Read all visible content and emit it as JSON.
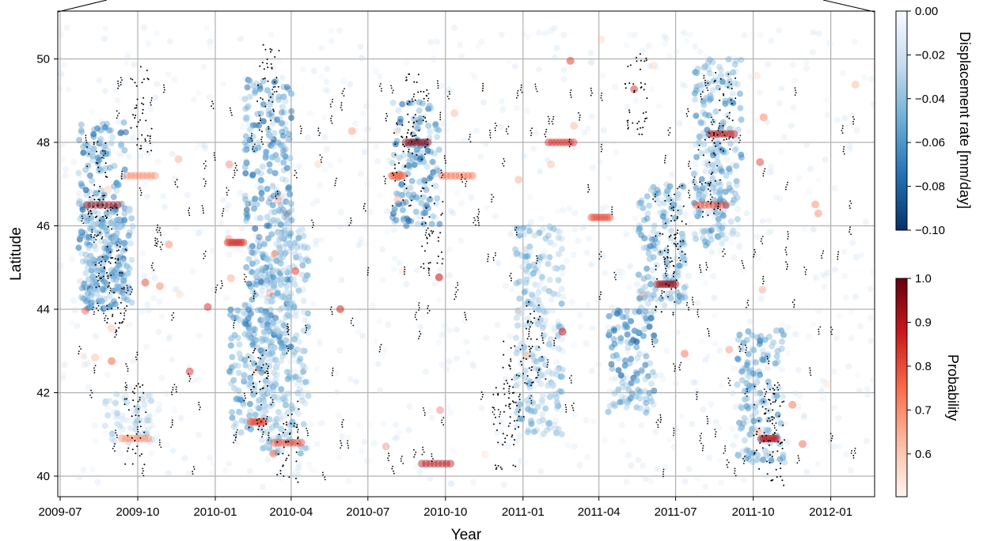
{
  "chart_data": {
    "type": "scatter",
    "xlabel": "Year",
    "ylabel": "Latitude",
    "x_ticks": [
      "2009-07",
      "2009-10",
      "2010-01",
      "2010-04",
      "2010-07",
      "2010-10",
      "2011-01",
      "2011-04",
      "2011-07",
      "2011-10",
      "2012-01"
    ],
    "y_ticks": [
      40,
      42,
      44,
      46,
      48,
      50
    ],
    "xlim": [
      "2009-07-01",
      "2012-03-01"
    ],
    "ylim": [
      39.55,
      51.15
    ],
    "grid": true,
    "colorbar_displacement": {
      "label": "Displacement rate [mm/day]",
      "range": [
        -0.1,
        0.0
      ],
      "ticks": [
        "0.00",
        "−0.02",
        "−0.04",
        "−0.06",
        "−0.08",
        "−0.10"
      ],
      "cmap_colors": [
        "#f7fbff",
        "#c6dbef",
        "#6baed6",
        "#2171b5",
        "#08306b"
      ]
    },
    "colorbar_probability": {
      "label": "Probability",
      "range": [
        0.5,
        1.0
      ],
      "ticks": [
        "1.0",
        "0.9",
        "0.8",
        "0.7",
        "0.6"
      ],
      "cmap_colors": [
        "#fff5f0",
        "#fcbba1",
        "#fb6a4a",
        "#cb181d",
        "#67000d"
      ]
    },
    "series": [
      {
        "role": "displacement-rate-clusters",
        "x": [
          "2009-08-20",
          "2009-08-28",
          "2009-09-20",
          "2010-02-15",
          "2010-03-05",
          "2010-03-25",
          "2010-08-27",
          "2011-01-20",
          "2011-05-10",
          "2011-06-15",
          "2011-08-20",
          "2011-10-10"
        ],
        "y_min": [
          44.0,
          44.0,
          40.8,
          41.0,
          43.0,
          40.5,
          46.0,
          41.0,
          41.5,
          44.0,
          45.5,
          40.3
        ],
        "y_max": [
          48.5,
          46.5,
          42.0,
          44.0,
          49.5,
          46.0,
          49.0,
          46.0,
          44.0,
          47.0,
          50.0,
          43.5
        ],
        "rate": [
          -0.06,
          -0.05,
          -0.03,
          -0.05,
          -0.06,
          -0.04,
          -0.06,
          -0.04,
          -0.06,
          -0.05,
          -0.05,
          -0.05
        ]
      },
      {
        "role": "probability-streak",
        "x": [
          "2009-08-20",
          "2009-09-28",
          "2009-10-05",
          "2010-01-25",
          "2010-02-20",
          "2010-03-28",
          "2010-08-05",
          "2010-08-28",
          "2010-09-20",
          "2010-10-15",
          "2011-02-15",
          "2011-04-03",
          "2011-06-20",
          "2011-08-12",
          "2011-08-25",
          "2011-10-20"
        ],
        "y": [
          46.5,
          40.9,
          47.2,
          45.6,
          41.3,
          40.8,
          47.2,
          48.0,
          40.3,
          47.2,
          48.0,
          46.2,
          44.6,
          46.5,
          48.2,
          40.9
        ],
        "probability": [
          0.95,
          0.7,
          0.7,
          0.85,
          0.8,
          0.8,
          0.75,
          0.95,
          0.9,
          0.75,
          0.85,
          0.8,
          0.95,
          0.8,
          0.9,
          0.9
        ]
      },
      {
        "role": "event-points",
        "x": [
          "2009-08-15",
          "2009-08-25",
          "2009-09-05",
          "2009-09-28",
          "2009-10-05",
          "2010-02-20",
          "2010-03-05",
          "2010-03-28",
          "2010-08-12",
          "2010-08-28",
          "2010-09-15",
          "2010-12-10",
          "2010-12-20",
          "2011-01-15",
          "2011-05-15",
          "2011-06-20",
          "2011-07-01",
          "2011-08-10",
          "2011-08-28",
          "2011-10-15",
          "2011-10-25"
        ],
        "y": [
          47.0,
          45.5,
          44.5,
          41.2,
          48.8,
          42.1,
          49.3,
          40.8,
          47.5,
          48.6,
          46.0,
          41.2,
          42.2,
          43.2,
          49.2,
          44.8,
          46.0,
          47.2,
          48.7,
          41.2,
          40.8
        ]
      }
    ]
  }
}
